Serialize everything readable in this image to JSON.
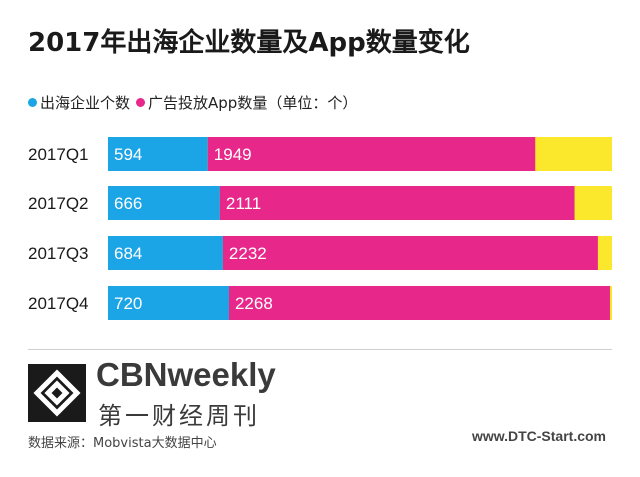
{
  "chart_data": {
    "type": "bar",
    "orientation": "horizontal",
    "stacked": true,
    "title": "2017年出海企业数量及App数量变化",
    "categories": [
      "2017Q1",
      "2017Q2",
      "2017Q3",
      "2017Q4"
    ],
    "series": [
      {
        "name": "出海企业个数",
        "color": "#1ba4e6",
        "values": [
          594,
          666,
          684,
          720
        ]
      },
      {
        "name": "广告投放App数量（单位：个）",
        "color": "#e7288a",
        "values": [
          1949,
          2111,
          2232,
          2268
        ]
      }
    ],
    "remainder_color": "#fbe82d",
    "xlim": [
      0,
      3000
    ],
    "grid": false,
    "legend_position": "top-left"
  },
  "brand": {
    "name_en": "CBNweekly",
    "name_cn": "第一财经周刊",
    "logo_icon": "cbn-logo-icon"
  },
  "source": "数据来源：Mobvista大数据中心",
  "watermark": "www.DTC-Start.com"
}
